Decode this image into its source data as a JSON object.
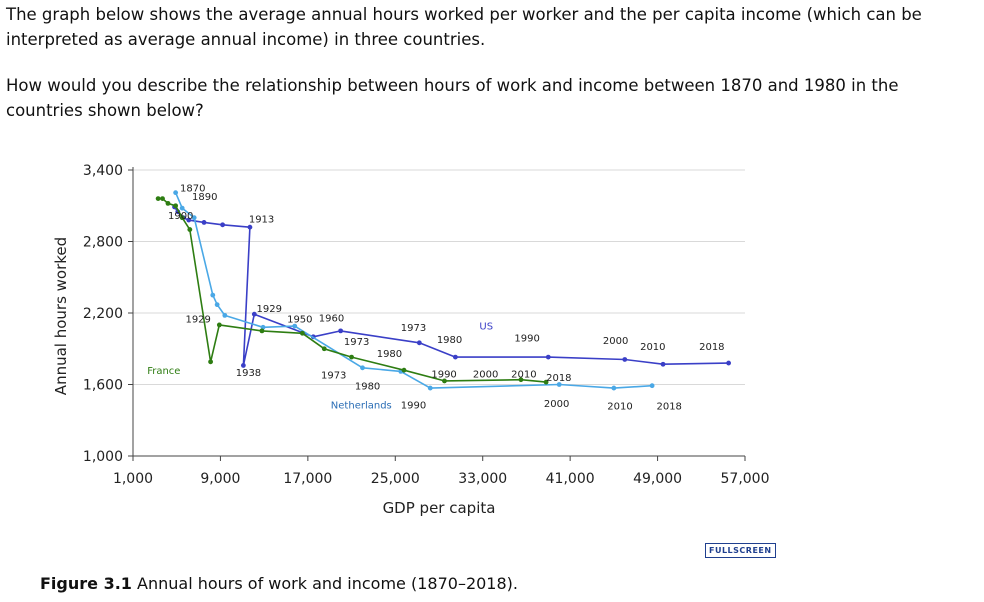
{
  "intro": {
    "p1": "The graph below shows the average annual hours worked per worker and the per capita income (which can be interpreted as average annual income) in three countries.",
    "p2": "How would you describe the relationship between hours of work and income between 1870 and 1980 in the countries shown below?"
  },
  "fullscreen_label": "FULLSCREEN",
  "caption": {
    "label": "Figure 3.1",
    "text": "Annual hours of work and income (1870–2018)."
  },
  "colors": {
    "us": "#3a3fc7",
    "netherlands": "#4aa8e6",
    "france": "#2e7d12",
    "grid": "#d9d9d9",
    "axis": "#444444"
  },
  "chart_data": {
    "type": "line",
    "title": "",
    "xlabel": "GDP per capita",
    "ylabel": "Annual hours worked",
    "xlim": [
      1000,
      57000
    ],
    "ylim": [
      1000,
      3400
    ],
    "xticks": [
      1000,
      9000,
      17000,
      25000,
      33000,
      41000,
      49000,
      57000
    ],
    "xtick_labels": [
      "1,000",
      "9,000",
      "17,000",
      "25,000",
      "33,000",
      "41,000",
      "49,000",
      "57,000"
    ],
    "yticks": [
      1000,
      1600,
      2200,
      2800,
      3400
    ],
    "ytick_labels": [
      "1,000",
      "1,600",
      "2,200",
      "2,800",
      "3,400"
    ],
    "grid": true,
    "series": [
      {
        "name": "US",
        "color": "#3a3fc7",
        "points": [
          [
            4800,
            3090
          ],
          [
            5100,
            3050
          ],
          [
            5600,
            3000
          ],
          [
            6100,
            2980
          ],
          [
            7500,
            2960
          ],
          [
            9200,
            2940
          ],
          [
            11700,
            2920
          ],
          [
            11100,
            1760
          ],
          [
            12100,
            2190
          ],
          [
            17500,
            2000
          ],
          [
            20000,
            2050
          ],
          [
            27200,
            1950
          ],
          [
            30500,
            1830
          ],
          [
            39000,
            1830
          ],
          [
            46000,
            1810
          ],
          [
            49500,
            1770
          ],
          [
            55500,
            1780
          ]
        ]
      },
      {
        "name": "Netherlands",
        "color": "#4aa8e6",
        "points": [
          [
            4900,
            3210
          ],
          [
            5500,
            3080
          ],
          [
            6600,
            3000
          ],
          [
            8300,
            2350
          ],
          [
            8700,
            2270
          ],
          [
            9400,
            2180
          ],
          [
            12900,
            2080
          ],
          [
            15800,
            2090
          ],
          [
            22000,
            1740
          ],
          [
            25500,
            1710
          ],
          [
            28200,
            1570
          ],
          [
            40000,
            1600
          ],
          [
            45000,
            1570
          ],
          [
            48500,
            1590
          ]
        ]
      },
      {
        "name": "France",
        "color": "#2e7d12",
        "points": [
          [
            3300,
            3160
          ],
          [
            3700,
            3160
          ],
          [
            4200,
            3120
          ],
          [
            4900,
            3100
          ],
          [
            5500,
            3000
          ],
          [
            6200,
            2900
          ],
          [
            8100,
            1790
          ],
          [
            8900,
            2100
          ],
          [
            12800,
            2050
          ],
          [
            16500,
            2030
          ],
          [
            18500,
            1900
          ],
          [
            21000,
            1830
          ],
          [
            25800,
            1720
          ],
          [
            29500,
            1630
          ],
          [
            36500,
            1640
          ],
          [
            38800,
            1620
          ]
        ]
      }
    ],
    "annotations": [
      {
        "text": "1870",
        "x": 5300,
        "y": 3220
      },
      {
        "text": "1890",
        "x": 6400,
        "y": 3150
      },
      {
        "text": "1900",
        "x": 4200,
        "y": 2990
      },
      {
        "text": "1913",
        "x": 11600,
        "y": 2960
      },
      {
        "text": "1929",
        "x": 12300,
        "y": 2210
      },
      {
        "text": "1929",
        "x": 5800,
        "y": 2120
      },
      {
        "text": "1950",
        "x": 15100,
        "y": 2120
      },
      {
        "text": "1960",
        "x": 18000,
        "y": 2130
      },
      {
        "text": "1973",
        "x": 25500,
        "y": 2050
      },
      {
        "text": "1980",
        "x": 28800,
        "y": 1950
      },
      {
        "text": "US",
        "x": 32700,
        "y": 2060
      },
      {
        "text": "1990",
        "x": 35900,
        "y": 1960
      },
      {
        "text": "2000",
        "x": 44000,
        "y": 1940
      },
      {
        "text": "2010",
        "x": 47400,
        "y": 1890
      },
      {
        "text": "2018",
        "x": 52800,
        "y": 1890
      },
      {
        "text": "1973",
        "x": 20300,
        "y": 1930
      },
      {
        "text": "1980",
        "x": 23300,
        "y": 1830
      },
      {
        "text": "France",
        "x": 2300,
        "y": 1690
      },
      {
        "text": "1938",
        "x": 10400,
        "y": 1670
      },
      {
        "text": "1973",
        "x": 18200,
        "y": 1650
      },
      {
        "text": "1980",
        "x": 21300,
        "y": 1560
      },
      {
        "text": "1990",
        "x": 28300,
        "y": 1660
      },
      {
        "text": "2000",
        "x": 32100,
        "y": 1660
      },
      {
        "text": "2010",
        "x": 35600,
        "y": 1660
      },
      {
        "text": "2018",
        "x": 38800,
        "y": 1630
      },
      {
        "text": "Netherlands",
        "x": 19100,
        "y": 1400
      },
      {
        "text": "1990",
        "x": 25500,
        "y": 1400
      },
      {
        "text": "2000",
        "x": 38600,
        "y": 1410
      },
      {
        "text": "2010",
        "x": 44400,
        "y": 1390
      },
      {
        "text": "2018",
        "x": 48900,
        "y": 1390
      }
    ]
  }
}
